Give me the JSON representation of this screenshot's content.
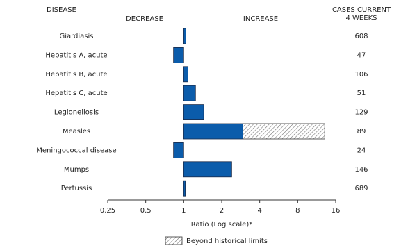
{
  "chart_data": {
    "type": "bar",
    "orientation": "horizontal",
    "log_scale": true,
    "header_disease": "DISEASE",
    "header_decrease": "DECREASE",
    "header_increase": "INCREASE",
    "header_cases": [
      "CASES CURRENT",
      "4 WEEKS"
    ],
    "categories": [
      "Giardiasis",
      "Hepatitis A, acute",
      "Hepatitis B, acute",
      "Hepatitis C, acute",
      "Legionellosis",
      "Measles",
      "Meningococcal disease",
      "Mumps",
      "Pertussis"
    ],
    "values": [
      1.04,
      0.83,
      1.08,
      1.24,
      1.44,
      13.1,
      0.83,
      2.4,
      1.03
    ],
    "historical_limits": [
      null,
      null,
      null,
      null,
      null,
      2.94,
      null,
      null,
      null
    ],
    "cases": [
      608,
      47,
      106,
      51,
      129,
      89,
      24,
      146,
      689
    ],
    "color": "#0b5cab",
    "xlim": [
      0.25,
      16
    ],
    "xticks": [
      0.25,
      0.5,
      1,
      2,
      4,
      8,
      16
    ],
    "xlabel": "Ratio (Log scale)*",
    "legend": "Beyond historical limits"
  }
}
